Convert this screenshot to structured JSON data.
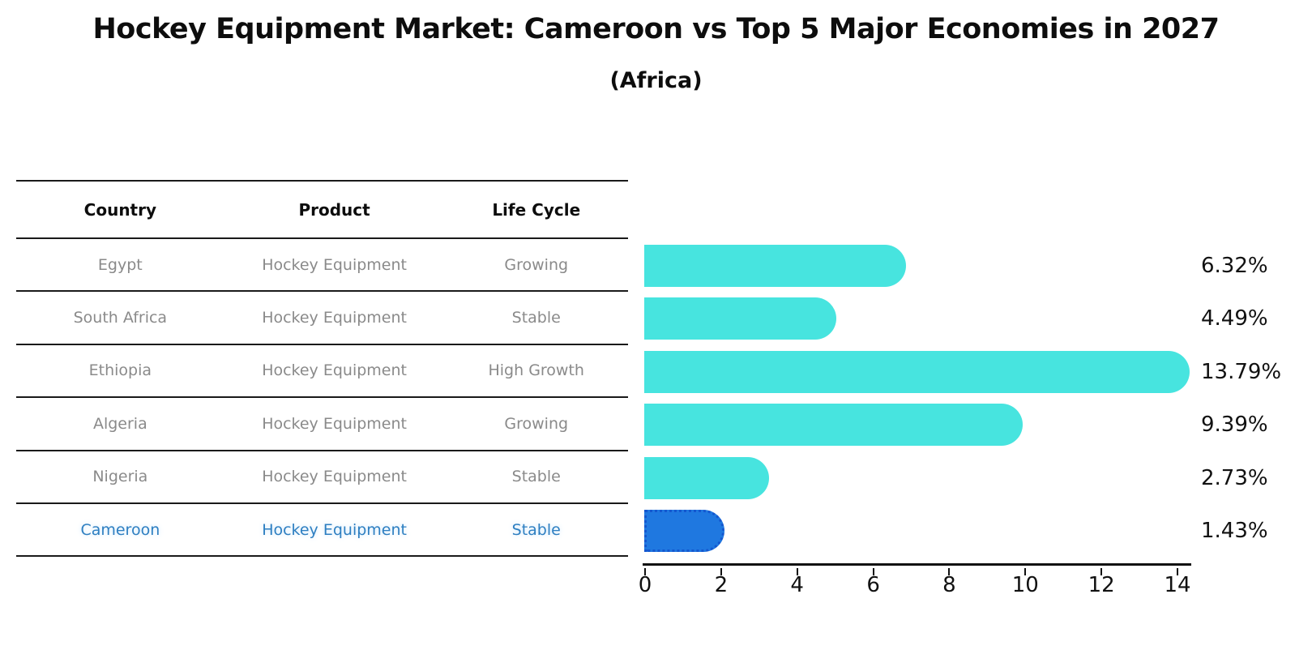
{
  "header": {
    "title": "Hockey Equipment Market: Cameroon vs Top 5 Major Economies in 2027",
    "subtitle": "(Africa)"
  },
  "table": {
    "headers": [
      "Country",
      "Product",
      "Life Cycle"
    ],
    "rows": [
      {
        "country": "Egypt",
        "product": "Hockey Equipment",
        "life_cycle": "Growing"
      },
      {
        "country": "South Africa",
        "product": "Hockey Equipment",
        "life_cycle": "Stable"
      },
      {
        "country": "Ethiopia",
        "product": "Hockey Equipment",
        "life_cycle": "High Growth"
      },
      {
        "country": "Algeria",
        "product": "Hockey Equipment",
        "life_cycle": "Growing"
      },
      {
        "country": "Nigeria",
        "product": "Hockey Equipment",
        "life_cycle": "Stable"
      },
      {
        "country": "Cameroon",
        "product": "Hockey Equipment",
        "life_cycle": "Stable"
      }
    ],
    "highlight_row": 5
  },
  "chart_data": {
    "type": "bar",
    "orientation": "horizontal",
    "title": "Hockey Equipment Market: Cameroon vs Top 5 Major Economies in 2027",
    "subtitle": "(Africa)",
    "categories": [
      "Egypt",
      "South Africa",
      "Ethiopia",
      "Algeria",
      "Nigeria",
      "Cameroon"
    ],
    "values": [
      6.32,
      4.49,
      13.79,
      9.39,
      2.73,
      1.43
    ],
    "value_labels": [
      "6.32%",
      "4.49%",
      "13.79%",
      "9.39%",
      "2.73%",
      "1.43%"
    ],
    "xlabel": "",
    "ylabel": "",
    "xlim": [
      0,
      14.4
    ],
    "xticks": [
      0,
      2,
      4,
      6,
      8,
      10,
      12,
      14
    ],
    "grid": false,
    "legend": false,
    "highlight_index": 5,
    "colors": {
      "bar": "#47e4df",
      "highlight_bar": "#1f78e0",
      "highlight_edge": "#1457cf",
      "highlight_text": "#2e7fc1",
      "table_text": "#8a8a8a",
      "text": "#111111"
    }
  }
}
